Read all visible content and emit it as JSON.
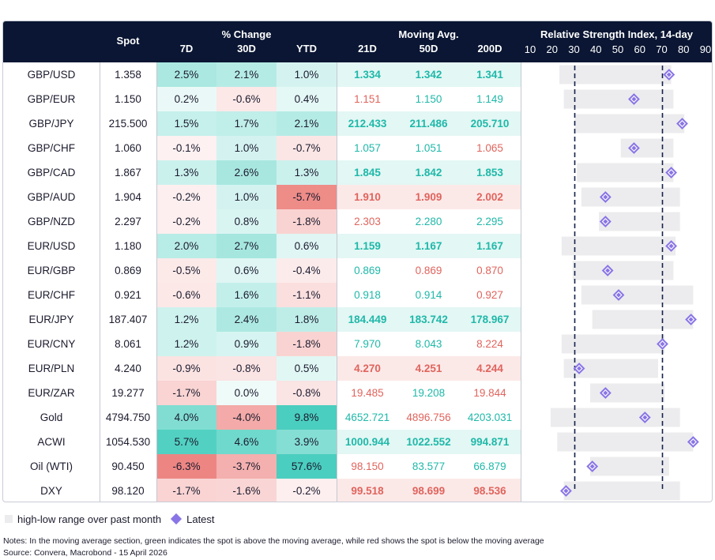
{
  "colors": {
    "header_bg": "#0a1633",
    "green_text": "#1fb8a9",
    "red_text": "#e0645d",
    "range_bar": "#ececee",
    "latest_marker": "#8a75e6"
  },
  "header": {
    "spot": "Spot",
    "pct_change_group": "% Change",
    "pct_cols": [
      "7D",
      "30D",
      "YTD"
    ],
    "ma_group": "Moving Avg.",
    "ma_cols": [
      "21D",
      "50D",
      "200D"
    ],
    "rsi_title": "Relative Strength Index, 14-day",
    "rsi_ticks": [
      "10",
      "20",
      "30",
      "40",
      "50",
      "60",
      "70",
      "80",
      "90"
    ]
  },
  "rows": [
    {
      "name": "GBP/USD",
      "spot": "1.358",
      "d7": "2.5%",
      "d30": "2.1%",
      "ytd": "1.0%",
      "ma21": "1.334",
      "ma50": "1.342",
      "ma200": "1.341",
      "ma_dir": [
        "g",
        "g",
        "g"
      ],
      "rsi": {
        "low": 23,
        "high": 74,
        "latest": 73
      }
    },
    {
      "name": "GBP/EUR",
      "spot": "1.150",
      "d7": "0.2%",
      "d30": "-0.6%",
      "ytd": "0.4%",
      "ma21": "1.151",
      "ma50": "1.150",
      "ma200": "1.149",
      "ma_dir": [
        "r",
        "g",
        "g"
      ],
      "rsi": {
        "low": 25,
        "high": 75,
        "latest": 57
      }
    },
    {
      "name": "GBP/JPY",
      "spot": "215.500",
      "d7": "1.5%",
      "d30": "1.7%",
      "ytd": "2.1%",
      "ma21": "212.433",
      "ma50": "211.486",
      "ma200": "205.710",
      "ma_dir": [
        "g",
        "g",
        "g"
      ],
      "rsi": {
        "low": 30,
        "high": 80,
        "latest": 79
      }
    },
    {
      "name": "GBP/CHF",
      "spot": "1.060",
      "d7": "-0.1%",
      "d30": "1.0%",
      "ytd": "-0.7%",
      "ma21": "1.057",
      "ma50": "1.051",
      "ma200": "1.065",
      "ma_dir": [
        "g",
        "g",
        "r"
      ],
      "rsi": {
        "low": 51,
        "high": 75,
        "latest": 57
      }
    },
    {
      "name": "GBP/CAD",
      "spot": "1.867",
      "d7": "1.3%",
      "d30": "2.6%",
      "ytd": "1.3%",
      "ma21": "1.845",
      "ma50": "1.842",
      "ma200": "1.853",
      "ma_dir": [
        "g",
        "g",
        "g"
      ],
      "rsi": {
        "low": 31,
        "high": 75,
        "latest": 74
      }
    },
    {
      "name": "GBP/AUD",
      "spot": "1.904",
      "d7": "-0.2%",
      "d30": "1.0%",
      "ytd": "-5.7%",
      "ma21": "1.910",
      "ma50": "1.909",
      "ma200": "2.002",
      "ma_dir": [
        "r",
        "r",
        "r"
      ],
      "rsi": {
        "low": 33,
        "high": 78,
        "latest": 44
      }
    },
    {
      "name": "GBP/NZD",
      "spot": "2.297",
      "d7": "-0.2%",
      "d30": "0.8%",
      "ytd": "-1.8%",
      "ma21": "2.303",
      "ma50": "2.280",
      "ma200": "2.295",
      "ma_dir": [
        "r",
        "g",
        "g"
      ],
      "rsi": {
        "low": 41,
        "high": 78,
        "latest": 44
      }
    },
    {
      "name": "EUR/USD",
      "spot": "1.180",
      "d7": "2.0%",
      "d30": "2.7%",
      "ytd": "0.6%",
      "ma21": "1.159",
      "ma50": "1.167",
      "ma200": "1.167",
      "ma_dir": [
        "g",
        "g",
        "g"
      ],
      "rsi": {
        "low": 24,
        "high": 76,
        "latest": 74
      }
    },
    {
      "name": "EUR/GBP",
      "spot": "0.869",
      "d7": "-0.5%",
      "d30": "0.6%",
      "ytd": "-0.4%",
      "ma21": "0.869",
      "ma50": "0.869",
      "ma200": "0.870",
      "ma_dir": [
        "g",
        "r",
        "r"
      ],
      "rsi": {
        "low": 29,
        "high": 75,
        "latest": 45
      }
    },
    {
      "name": "EUR/CHF",
      "spot": "0.921",
      "d7": "-0.6%",
      "d30": "1.6%",
      "ytd": "-1.1%",
      "ma21": "0.918",
      "ma50": "0.914",
      "ma200": "0.927",
      "ma_dir": [
        "g",
        "g",
        "r"
      ],
      "rsi": {
        "low": 33,
        "high": 84,
        "latest": 50
      }
    },
    {
      "name": "EUR/JPY",
      "spot": "187.407",
      "d7": "1.2%",
      "d30": "2.4%",
      "ytd": "1.8%",
      "ma21": "184.449",
      "ma50": "183.742",
      "ma200": "178.967",
      "ma_dir": [
        "g",
        "g",
        "g"
      ],
      "rsi": {
        "low": 38,
        "high": 84,
        "latest": 83
      }
    },
    {
      "name": "EUR/CNY",
      "spot": "8.061",
      "d7": "1.2%",
      "d30": "0.9%",
      "ytd": "-1.8%",
      "ma21": "7.970",
      "ma50": "8.043",
      "ma200": "8.224",
      "ma_dir": [
        "g",
        "g",
        "r"
      ],
      "rsi": {
        "low": 24,
        "high": 71,
        "latest": 70
      }
    },
    {
      "name": "EUR/PLN",
      "spot": "4.240",
      "d7": "-0.9%",
      "d30": "-0.8%",
      "ytd": "0.5%",
      "ma21": "4.270",
      "ma50": "4.251",
      "ma200": "4.244",
      "ma_dir": [
        "r",
        "r",
        "r"
      ],
      "rsi": {
        "low": 25,
        "high": 68,
        "latest": 32
      }
    },
    {
      "name": "EUR/ZAR",
      "spot": "19.277",
      "d7": "-1.7%",
      "d30": "0.0%",
      "ytd": "-0.8%",
      "ma21": "19.485",
      "ma50": "19.208",
      "ma200": "19.844",
      "ma_dir": [
        "r",
        "g",
        "r"
      ],
      "rsi": {
        "low": 37,
        "high": 71,
        "latest": 44
      }
    },
    {
      "name": "Gold",
      "spot": "4794.750",
      "d7": "4.0%",
      "d30": "-4.0%",
      "ytd": "9.8%",
      "ma21": "4652.721",
      "ma50": "4896.756",
      "ma200": "4203.031",
      "ma_dir": [
        "g",
        "r",
        "g"
      ],
      "rsi": {
        "low": 19,
        "high": 78,
        "latest": 62
      }
    },
    {
      "name": "ACWI",
      "spot": "1054.530",
      "d7": "5.7%",
      "d30": "4.6%",
      "ytd": "3.9%",
      "ma21": "1000.944",
      "ma50": "1022.552",
      "ma200": "994.871",
      "ma_dir": [
        "g",
        "g",
        "g"
      ],
      "rsi": {
        "low": 22,
        "high": 84,
        "latest": 84
      }
    },
    {
      "name": "Oil (WTI)",
      "spot": "90.450",
      "d7": "-6.3%",
      "d30": "-3.7%",
      "ytd": "57.6%",
      "ma21": "98.150",
      "ma50": "83.577",
      "ma200": "66.879",
      "ma_dir": [
        "r",
        "g",
        "g"
      ],
      "rsi": {
        "low": 37,
        "high": 73,
        "latest": 38
      }
    },
    {
      "name": "DXY",
      "spot": "98.120",
      "d7": "-1.7%",
      "d30": "-1.6%",
      "ytd": "-0.2%",
      "ma21": "99.518",
      "ma50": "98.699",
      "ma200": "98.536",
      "ma_dir": [
        "r",
        "r",
        "r"
      ],
      "rsi": {
        "low": 25,
        "high": 78,
        "latest": 26
      }
    }
  ],
  "chart_data": {
    "type": "table",
    "title": "Relative Strength Index, 14-day",
    "xlim": [
      10,
      90
    ],
    "reference_lines": [
      30,
      70
    ],
    "legend": {
      "range": "high-low range over past month",
      "latest": "Latest"
    }
  },
  "footer": {
    "legend_range": "high-low range over past month",
    "legend_latest": "Latest",
    "notes": "Notes: In the moving average section, green indicates the spot is above the moving average, while red shows the spot is below the moving average",
    "source": "Source: Convera, Macrobond - 15 April 2026"
  }
}
